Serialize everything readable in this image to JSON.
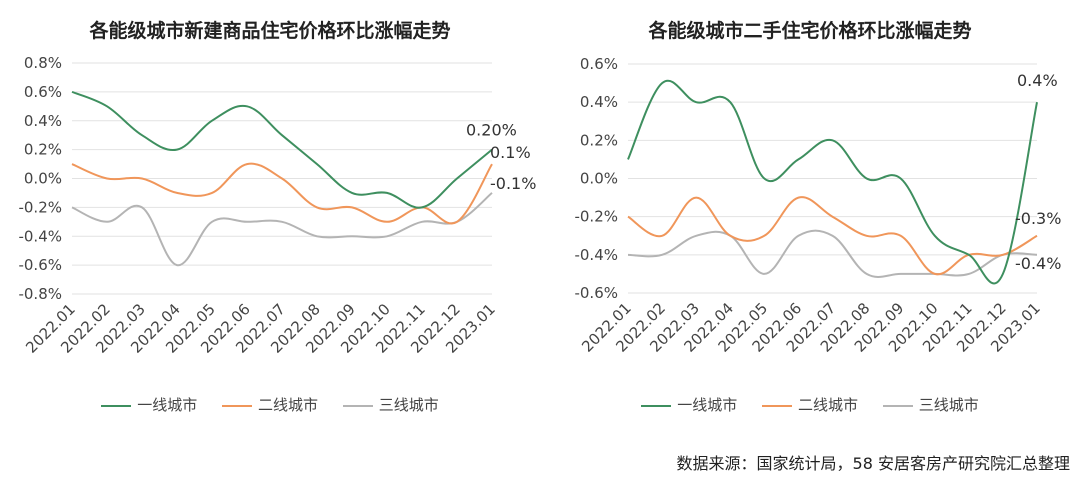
{
  "source_note": "数据来源：国家统计局，58 安居客房产研究院汇总整理",
  "chart_data": [
    {
      "type": "line",
      "title": "各能级城市新建商品住宅价格环比涨幅走势",
      "categories": [
        "2022.01",
        "2022.02",
        "2022.03",
        "2022.04",
        "2022.05",
        "2022.06",
        "2022.07",
        "2022.08",
        "2022.09",
        "2022.10",
        "2022.11",
        "2022.12",
        "2023.01"
      ],
      "ylim": [
        -0.8,
        0.8
      ],
      "yticks": [
        "0.8%",
        "0.6%",
        "0.4%",
        "0.2%",
        "0.0%",
        "-0.2%",
        "-0.4%",
        "-0.6%",
        "-0.8%"
      ],
      "grid": true,
      "legend": "bottom",
      "series": [
        {
          "name": "一线城市",
          "color": "#3e8f5f",
          "values": [
            0.6,
            0.5,
            0.3,
            0.2,
            0.4,
            0.5,
            0.3,
            0.1,
            -0.1,
            -0.1,
            -0.2,
            0.0,
            0.2
          ]
        },
        {
          "name": "二线城市",
          "color": "#f0965a",
          "values": [
            0.1,
            0.0,
            0.0,
            -0.1,
            -0.1,
            0.1,
            0.0,
            -0.2,
            -0.2,
            -0.3,
            -0.2,
            -0.3,
            0.1
          ]
        },
        {
          "name": "三线城市",
          "color": "#b4b4b4",
          "values": [
            -0.2,
            -0.3,
            -0.2,
            -0.6,
            -0.3,
            -0.3,
            -0.3,
            -0.4,
            -0.4,
            -0.4,
            -0.3,
            -0.3,
            -0.1
          ]
        }
      ],
      "end_labels": [
        "0.20%",
        "0.1%",
        "-0.1%"
      ]
    },
    {
      "type": "line",
      "title": "各能级城市二手住宅价格环比涨幅走势",
      "categories": [
        "2022.01",
        "2022.02",
        "2022.03",
        "2022.04",
        "2022.05",
        "2022.06",
        "2022.07",
        "2022.08",
        "2022.09",
        "2022.10",
        "2022.11",
        "2022.12",
        "2023.01"
      ],
      "ylim": [
        -0.6,
        0.6
      ],
      "yticks": [
        "0.6%",
        "0.4%",
        "0.2%",
        "0.0%",
        "-0.2%",
        "-0.4%",
        "-0.6%"
      ],
      "grid": true,
      "legend": "bottom",
      "series": [
        {
          "name": "一线城市",
          "color": "#3e8f5f",
          "values": [
            0.1,
            0.5,
            0.4,
            0.4,
            0.0,
            0.1,
            0.2,
            0.0,
            0.0,
            -0.3,
            -0.4,
            -0.5,
            0.4
          ]
        },
        {
          "name": "二线城市",
          "color": "#f0965a",
          "values": [
            -0.2,
            -0.3,
            -0.1,
            -0.3,
            -0.3,
            -0.1,
            -0.2,
            -0.3,
            -0.3,
            -0.5,
            -0.4,
            -0.4,
            -0.3
          ]
        },
        {
          "name": "三线城市",
          "color": "#b4b4b4",
          "values": [
            -0.4,
            -0.4,
            -0.3,
            -0.3,
            -0.5,
            -0.3,
            -0.3,
            -0.5,
            -0.5,
            -0.5,
            -0.5,
            -0.4,
            -0.4
          ]
        }
      ],
      "end_labels": [
        "0.4%",
        "-0.3%",
        "-0.4%"
      ]
    }
  ]
}
